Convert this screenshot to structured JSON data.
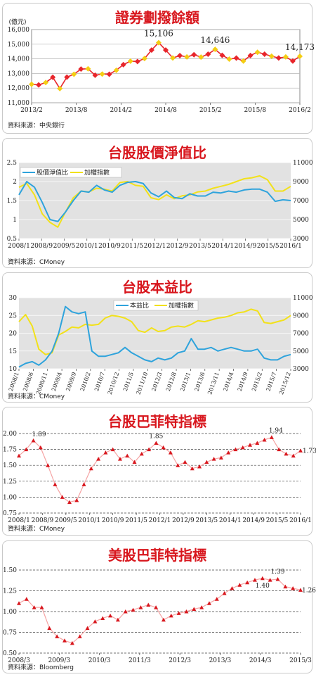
{
  "chart_data": [
    {
      "type": "line",
      "title": "證券劃撥餘額",
      "unit_label": "(億元)",
      "source": "資料來源：中央銀行",
      "ylim": [
        11000,
        16000
      ],
      "yticks": [
        "11,000",
        "12,000",
        "13,000",
        "14,000",
        "15,000",
        "16,000"
      ],
      "xticks": [
        "2013/2",
        "2013/8",
        "2014/2",
        "2014/8",
        "2015/2",
        "2015/8",
        "2016/2"
      ],
      "grid": true,
      "colors": {
        "line": "#e8252b",
        "marker": "#f4ce13"
      },
      "annotations": [
        "15,106",
        "14,646",
        "14,173"
      ],
      "series": [
        {
          "values": [
            12260,
            12220,
            12380,
            12740,
            11970,
            12750,
            12950,
            13300,
            13320,
            12880,
            12960,
            12950,
            13220,
            13600,
            13840,
            13820,
            14020,
            14600,
            15106,
            14600,
            14060,
            14220,
            14130,
            14280,
            14120,
            14320,
            14646,
            14240,
            13980,
            14050,
            13850,
            14230,
            14450,
            14320,
            14180,
            14060,
            14130,
            13850,
            14173
          ]
        }
      ]
    },
    {
      "type": "line",
      "title": "台股股價淨值比",
      "source": "資料來源：CMoney",
      "ylim": [
        0.5,
        2.5
      ],
      "y2lim": [
        3000,
        11000
      ],
      "yticks": [
        "0.5",
        "1",
        "1.5",
        "2",
        "2.5"
      ],
      "y2ticks": [
        "3000",
        "5000",
        "7000",
        "9000",
        "11000"
      ],
      "xticks": [
        "2008/1",
        "2008/9",
        "2009/5",
        "2010/1",
        "2010/9",
        "2011/5",
        "2012/1",
        "2012/9",
        "2013/5",
        "2014/1",
        "2014/9",
        "2015/5",
        "2016/1"
      ],
      "colors": {
        "series1": "#2ea3dc",
        "series2": "#f2e11a"
      },
      "series": [
        {
          "name": "股價淨值比",
          "values": [
            1.65,
            2.0,
            1.85,
            1.45,
            1.0,
            0.95,
            1.2,
            1.5,
            1.75,
            1.72,
            1.9,
            1.78,
            1.72,
            1.9,
            1.98,
            2.0,
            1.95,
            1.7,
            1.6,
            1.75,
            1.58,
            1.55,
            1.68,
            1.62,
            1.62,
            1.72,
            1.7,
            1.75,
            1.72,
            1.78,
            1.8,
            1.8,
            1.72,
            1.48,
            1.52,
            1.5
          ]
        },
        {
          "name": "加權指數",
          "values": [
            8400,
            8800,
            7600,
            5600,
            4700,
            4200,
            5800,
            7300,
            8000,
            7900,
            8300,
            8200,
            8000,
            8900,
            9000,
            8600,
            8500,
            7300,
            7100,
            7600,
            7200,
            7500,
            7600,
            7900,
            8000,
            8300,
            8500,
            8700,
            9000,
            9300,
            9400,
            9600,
            9200,
            8000,
            8000,
            8500
          ]
        }
      ]
    },
    {
      "type": "line",
      "title": "台股本益比",
      "source": "資料來源：CMoney",
      "ylim": [
        10,
        30
      ],
      "y2lim": [
        3000,
        11000
      ],
      "yticks": [
        "10",
        "15",
        "20",
        "25",
        "30"
      ],
      "y2ticks": [
        "3000",
        "5000",
        "7000",
        "9000",
        "11000"
      ],
      "xticks": [
        "2008/1",
        "2008/6",
        "2008/11",
        "2009/4",
        "2009/9",
        "2010/2",
        "2010/7",
        "2010/12",
        "2011/5",
        "2011/10",
        "2012/3",
        "2012/8",
        "2013/1",
        "2013/6",
        "2013/11",
        "2014/4",
        "2014/9",
        "2015/2",
        "2015/7",
        "2015/12"
      ],
      "colors": {
        "series1": "#2ea3dc",
        "series2": "#f2e11a"
      },
      "series": [
        {
          "name": "本益比",
          "values": [
            10.5,
            11.5,
            12.0,
            11.0,
            12.5,
            15.0,
            20.0,
            27.5,
            26.0,
            25.5,
            26.0,
            15.0,
            13.5,
            13.5,
            14.0,
            14.5,
            16.0,
            14.5,
            13.5,
            12.5,
            12.0,
            13.0,
            12.5,
            13.0,
            14.5,
            15.0,
            18.5,
            15.5,
            15.5,
            16.0,
            15.0,
            15.5,
            16.0,
            15.5,
            15.0,
            15.0,
            15.5,
            13.0,
            12.5,
            12.5,
            13.5,
            14.0
          ]
        },
        {
          "name": "加權指數",
          "values": [
            8300,
            9100,
            7800,
            5200,
            4600,
            4800,
            6800,
            7200,
            7700,
            7600,
            8000,
            7900,
            8000,
            8700,
            9000,
            8900,
            8700,
            8300,
            7300,
            7100,
            7600,
            7200,
            7300,
            7700,
            7800,
            7700,
            8000,
            8400,
            8300,
            8500,
            8700,
            8800,
            9000,
            9300,
            9400,
            9700,
            9500,
            8200,
            8100,
            8300,
            8500,
            9000
          ]
        }
      ]
    },
    {
      "type": "line",
      "title": "台股巴菲特指標",
      "source": "資料來源：CMoney",
      "ylim": [
        0.75,
        2.0
      ],
      "yticks": [
        "0.75",
        "1.00",
        "1.25",
        "1.50",
        "1.75",
        "2.00"
      ],
      "xticks": [
        "2008/1",
        "2008/9",
        "2009/5",
        "2010/1",
        "2010/9",
        "2011/5",
        "2012/1",
        "2012/9",
        "2013/5",
        "2014/1",
        "2014/9",
        "2015/5",
        "2016/1"
      ],
      "colors": {
        "line": "#f5a3a3",
        "marker": "#d8161d"
      },
      "annotations": [
        "1.89",
        "1.85",
        "1.94",
        "1.73"
      ],
      "series": [
        {
          "values": [
            1.65,
            1.75,
            1.89,
            1.78,
            1.5,
            1.2,
            1.0,
            0.92,
            0.95,
            1.2,
            1.45,
            1.6,
            1.7,
            1.75,
            1.6,
            1.65,
            1.55,
            1.68,
            1.75,
            1.85,
            1.78,
            1.7,
            1.5,
            1.55,
            1.45,
            1.48,
            1.55,
            1.6,
            1.62,
            1.7,
            1.75,
            1.78,
            1.82,
            1.85,
            1.9,
            1.94,
            1.75,
            1.68,
            1.65,
            1.73
          ]
        }
      ]
    },
    {
      "type": "line",
      "title": "美股巴菲特指標",
      "source": "資料來源：Bloomberg",
      "ylim": [
        0.5,
        1.5
      ],
      "yticks": [
        "0.50",
        "0.75",
        "1.00",
        "1.25",
        "1.50"
      ],
      "xticks": [
        "2008/3",
        "2009/3",
        "2010/3",
        "2011/3",
        "2012/3",
        "2013/3",
        "2014/3",
        "2015/3"
      ],
      "colors": {
        "line": "#f5a3a3",
        "marker": "#d8161d"
      },
      "annotations": [
        "1.40",
        "1.39",
        "1.26"
      ],
      "series": [
        {
          "values": [
            1.1,
            1.15,
            1.05,
            1.05,
            0.8,
            0.7,
            0.65,
            0.62,
            0.7,
            0.8,
            0.88,
            0.92,
            0.95,
            0.9,
            1.0,
            1.02,
            1.05,
            1.08,
            1.05,
            0.9,
            0.95,
            0.98,
            1.0,
            1.03,
            1.05,
            1.1,
            1.15,
            1.22,
            1.28,
            1.32,
            1.35,
            1.38,
            1.4,
            1.38,
            1.39,
            1.3,
            1.28,
            1.26
          ]
        }
      ]
    }
  ]
}
